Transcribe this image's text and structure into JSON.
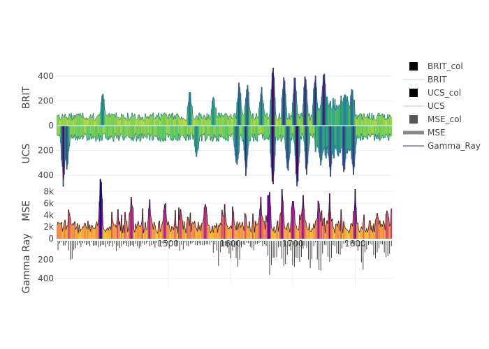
{
  "chart_data": {
    "type": "multi-panel well log",
    "x_range": [
      1320,
      1860
    ],
    "x_ticks": [
      1500,
      1600,
      1700,
      1800
    ],
    "panels": [
      {
        "id": "brit",
        "ylabel": "BRIT",
        "ylim": [
          0,
          450
        ],
        "ytick_values": [
          0,
          200,
          400
        ],
        "ytick_labels": [
          "0",
          "200",
          "400"
        ],
        "series": "BRIT",
        "fill": "BRIT_col"
      },
      {
        "id": "ucs",
        "ylabel": "UCS",
        "ylim": [
          450,
          0
        ],
        "ytick_values": [
          200,
          400
        ],
        "ytick_labels": [
          "200",
          "400"
        ],
        "series": "UCS",
        "fill": "UCS_col"
      },
      {
        "id": "mse",
        "ylabel": "MSE",
        "ylim": [
          0,
          9500
        ],
        "ytick_values": [
          0,
          2000,
          4000,
          6000,
          8000
        ],
        "ytick_labels": [
          "0",
          "2k",
          "4k",
          "6k",
          "8k"
        ],
        "series": "MSE",
        "fill": "MSE_col"
      },
      {
        "id": "gr",
        "ylabel": "Gamma Ray",
        "ylim": [
          480,
          0
        ],
        "ytick_values": [
          200,
          400
        ],
        "ytick_labels": [
          "200",
          "400"
        ],
        "series": "Gamma_Ray"
      }
    ],
    "legend": {
      "placement": "right",
      "entries": [
        {
          "label": "BRIT_col",
          "kind": "square",
          "color": "#000000"
        },
        {
          "label": "BRIT",
          "kind": "line",
          "color": "#aee3ef"
        },
        {
          "label": "UCS_col",
          "kind": "square",
          "color": "#000000"
        },
        {
          "label": "UCS",
          "kind": "line",
          "color": "#c9b8ea"
        },
        {
          "label": "MSE_col",
          "kind": "square",
          "color": "#555555"
        },
        {
          "label": "MSE",
          "kind": "thick-line",
          "color": "#888888"
        },
        {
          "label": "Gamma_Ray",
          "kind": "line",
          "color": "#333366"
        }
      ]
    },
    "spikes": {
      "brit": [
        [
          1395,
          230
        ],
        [
          1535,
          210
        ],
        [
          1573,
          160
        ],
        [
          1614,
          310
        ],
        [
          1627,
          290
        ],
        [
          1650,
          235
        ],
        [
          1668,
          470
        ],
        [
          1686,
          380
        ],
        [
          1703,
          355
        ],
        [
          1720,
          370
        ],
        [
          1736,
          380
        ],
        [
          1750,
          410
        ],
        [
          1783,
          205
        ],
        [
          1795,
          220
        ]
      ],
      "ucs": [
        [
          1332,
          370
        ],
        [
          1338,
          250
        ],
        [
          1546,
          150
        ],
        [
          1610,
          280
        ],
        [
          1625,
          310
        ],
        [
          1668,
          420
        ],
        [
          1692,
          330
        ],
        [
          1707,
          425
        ],
        [
          1722,
          300
        ],
        [
          1745,
          260
        ],
        [
          1760,
          310
        ],
        [
          1782,
          310
        ],
        [
          1797,
          330
        ]
      ],
      "mse": [
        [
          1392,
          9400
        ],
        [
          1341,
          3200
        ],
        [
          1441,
          6600
        ],
        [
          1470,
          4200
        ],
        [
          1495,
          5200
        ],
        [
          1520,
          3600
        ],
        [
          1560,
          6100
        ],
        [
          1590,
          4500
        ],
        [
          1648,
          5400
        ],
        [
          1662,
          9600
        ],
        [
          1683,
          6400
        ],
        [
          1700,
          5600
        ],
        [
          1716,
          6100
        ],
        [
          1742,
          5400
        ],
        [
          1760,
          3800
        ],
        [
          1800,
          5900
        ],
        [
          1836,
          3200
        ],
        [
          1852,
          4700
        ]
      ],
      "gr": [
        [
          1345,
          260
        ],
        [
          1582,
          220
        ],
        [
          1600,
          180
        ],
        [
          1612,
          300
        ],
        [
          1664,
          380
        ],
        [
          1672,
          250
        ],
        [
          1686,
          330
        ],
        [
          1702,
          440
        ],
        [
          1712,
          260
        ],
        [
          1727,
          420
        ],
        [
          1744,
          400
        ],
        [
          1759,
          280
        ],
        [
          1774,
          200
        ],
        [
          1812,
          300
        ],
        [
          1833,
          220
        ],
        [
          1851,
          180
        ]
      ]
    }
  }
}
